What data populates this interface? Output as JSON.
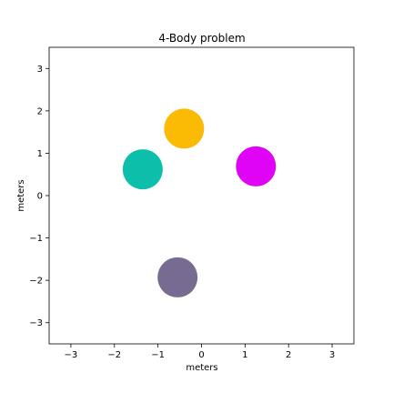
{
  "chart_data": {
    "type": "scatter",
    "title": "4-Body problem",
    "xlabel": "meters",
    "ylabel": "meters",
    "xlim": [
      -3.5,
      3.5
    ],
    "ylim": [
      -3.5,
      3.5
    ],
    "xticks": [
      -3,
      -2,
      -1,
      0,
      1,
      2,
      3
    ],
    "yticks": [
      -3,
      -2,
      -1,
      0,
      1,
      2,
      3
    ],
    "grid": false,
    "bodies": [
      {
        "x": -0.4,
        "y": 1.58,
        "radius": 0.46,
        "color": "#fbba04"
      },
      {
        "x": -1.35,
        "y": 0.62,
        "radius": 0.46,
        "color": "#0bbfaa"
      },
      {
        "x": 1.25,
        "y": 0.69,
        "radius": 0.46,
        "color": "#e004f7"
      },
      {
        "x": -0.55,
        "y": -1.93,
        "radius": 0.46,
        "color": "#776b91"
      }
    ]
  }
}
